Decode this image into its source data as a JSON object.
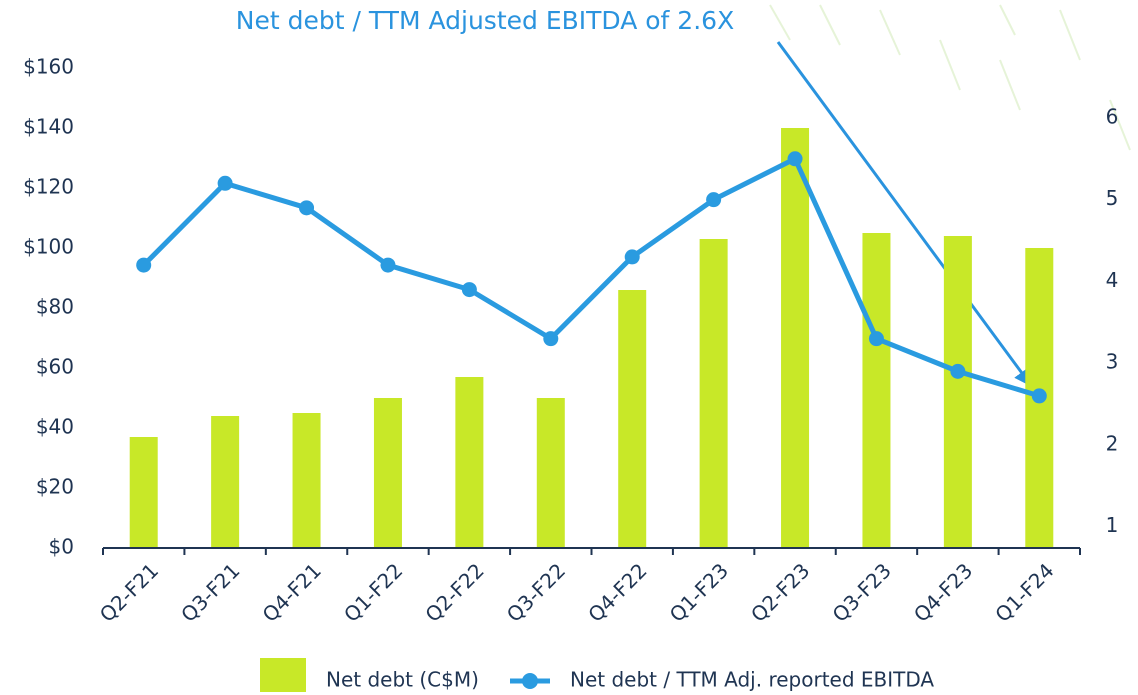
{
  "chart_data": {
    "type": "bar-line",
    "title": "Net debt / TTM Adjusted EBITDA of 2.6X",
    "categories": [
      "Q2-F21",
      "Q3-F21",
      "Q4-F21",
      "Q1-F22",
      "Q2-F22",
      "Q3-F22",
      "Q4-F22",
      "Q1-F23",
      "Q2-F23",
      "Q3-F23",
      "Q4-F23",
      "Q1-F24"
    ],
    "series": [
      {
        "name": "Net debt (C$M)",
        "type": "bar",
        "color": "#c8e828",
        "values": [
          37,
          44,
          45,
          50,
          57,
          50,
          86,
          103,
          140,
          105,
          104,
          100
        ]
      },
      {
        "name": "Net debt / TTM Adj. reported EBITDA",
        "type": "line",
        "axis": "y2",
        "color": "#2a9be0",
        "values": [
          4.2,
          5.2,
          4.9,
          4.2,
          3.9,
          3.3,
          4.3,
          5.0,
          5.5,
          3.3,
          2.9,
          2.6
        ]
      }
    ],
    "ylim": [
      0,
      160
    ],
    "yticks": [
      {
        "value": 0,
        "label": "$0"
      },
      {
        "value": 20,
        "label": "$20"
      },
      {
        "value": 40,
        "label": "$40"
      },
      {
        "value": 60,
        "label": "$60"
      },
      {
        "value": 80,
        "label": "$80"
      },
      {
        "value": 100,
        "label": "$100"
      },
      {
        "value": 120,
        "label": "$120"
      },
      {
        "value": 140,
        "label": "$140"
      },
      {
        "value": 160,
        "label": "$160"
      }
    ],
    "y2lim": [
      0.74,
      6.61
    ],
    "y2ticks": [
      1,
      2,
      3,
      4,
      5,
      6
    ]
  }
}
